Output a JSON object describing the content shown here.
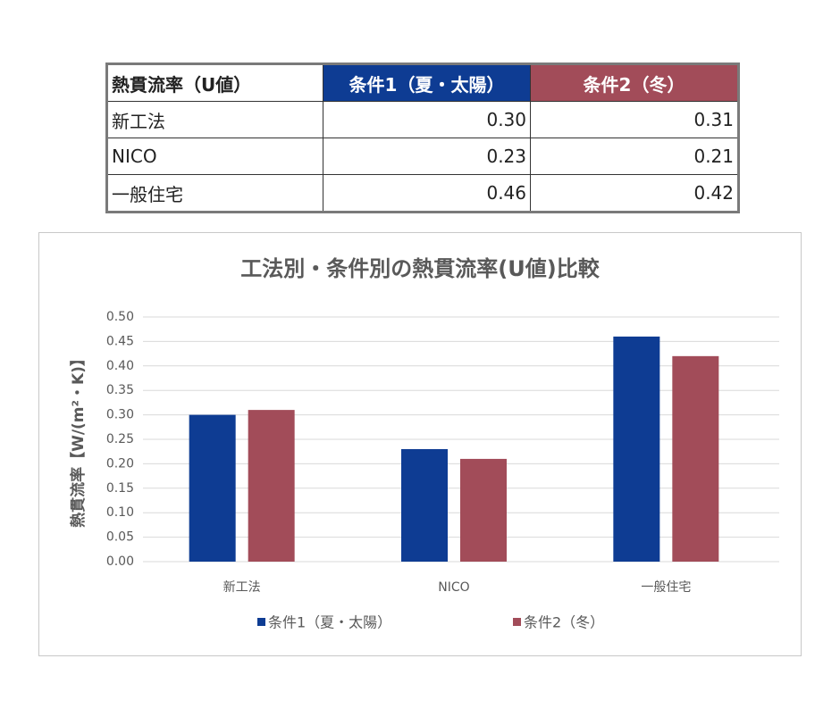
{
  "table": {
    "header": [
      "熱貫流率（U値）",
      "条件1（夏・太陽）",
      "条件2（冬）"
    ],
    "rows": [
      [
        "新工法",
        "0.30",
        "0.31"
      ],
      [
        "NICO",
        "0.23",
        "0.21"
      ],
      [
        "一般住宅",
        "0.46",
        "0.42"
      ]
    ]
  },
  "chart_data": {
    "type": "bar",
    "title": "工法別・条件別の熱貫流率(U値)比較",
    "y_label": "熱貫流率【W/(m²・K)】",
    "categories": [
      "新工法",
      "NICO",
      "一般住宅"
    ],
    "series": [
      {
        "name": "条件1（夏・太陽）",
        "color": "#0e3c93",
        "values": [
          0.3,
          0.23,
          0.46
        ]
      },
      {
        "name": "条件2（冬）",
        "color": "#a24c59",
        "values": [
          0.31,
          0.21,
          0.42
        ]
      }
    ],
    "ylim": [
      0,
      0.5
    ],
    "yticks": [
      {
        "value": 0,
        "label": "0.00"
      },
      {
        "value": 0.05,
        "label": "0.05"
      },
      {
        "value": 0.1,
        "label": "0.10"
      },
      {
        "value": 0.15,
        "label": "0.15"
      },
      {
        "value": 0.2,
        "label": "0.20"
      },
      {
        "value": 0.25,
        "label": "0.25"
      },
      {
        "value": 0.3,
        "label": "0.30"
      },
      {
        "value": 0.35,
        "label": "0.35"
      },
      {
        "value": 0.4,
        "label": "0.40"
      },
      {
        "value": 0.45,
        "label": "0.45"
      },
      {
        "value": 0.5,
        "label": "0.50"
      }
    ],
    "grid": true,
    "legend": "bottom"
  }
}
